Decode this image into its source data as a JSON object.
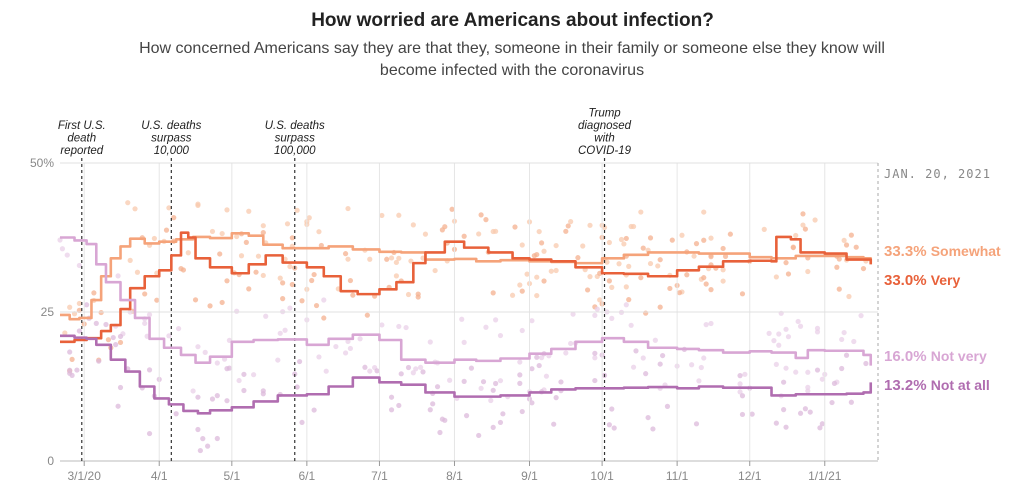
{
  "chart_data": {
    "type": "line",
    "title": "How worried are Americans about infection?",
    "subtitle": "How concerned Americans say they are that they, someone in their family or someone else they know will become infected with the coronavirus",
    "x_range": [
      "2020-02-20",
      "2021-01-23"
    ],
    "ylim": [
      0,
      50
    ],
    "y_ticks": [
      {
        "value": 0,
        "label": "0"
      },
      {
        "value": 25,
        "label": "25"
      },
      {
        "value": 50,
        "label": "50%"
      }
    ],
    "x_ticks": [
      {
        "date": "2020-03-01",
        "label": "3/1/20"
      },
      {
        "date": "2020-04-01",
        "label": "4/1"
      },
      {
        "date": "2020-05-01",
        "label": "5/1"
      },
      {
        "date": "2020-06-01",
        "label": "6/1"
      },
      {
        "date": "2020-07-01",
        "label": "7/1"
      },
      {
        "date": "2020-08-01",
        "label": "8/1"
      },
      {
        "date": "2020-09-01",
        "label": "9/1"
      },
      {
        "date": "2020-10-01",
        "label": "10/1"
      },
      {
        "date": "2020-11-01",
        "label": "11/1"
      },
      {
        "date": "2020-12-01",
        "label": "12/1"
      },
      {
        "date": "2021-01-01",
        "label": "1/1/21"
      }
    ],
    "current_date_label": "JAN. 20, 2021",
    "annotations": [
      {
        "date": "2020-02-29",
        "lines": [
          "First U.S.",
          "death",
          "reported"
        ]
      },
      {
        "date": "2020-04-06",
        "lines": [
          "U.S. deaths",
          "surpass",
          "10,000"
        ]
      },
      {
        "date": "2020-05-27",
        "lines": [
          "U.S. deaths",
          "surpass",
          "100,000"
        ]
      },
      {
        "date": "2020-10-02",
        "lines": [
          "Trump",
          "diagnosed",
          "with",
          "COVID-19"
        ]
      }
    ],
    "series": [
      {
        "name": "Somewhat",
        "end_value": "33.3%",
        "color": "#f5a37a",
        "dot_color": "#f8c9ad",
        "points": [
          [
            "2020-02-20",
            24.5
          ],
          [
            "2020-02-24",
            23.8
          ],
          [
            "2020-02-28",
            24
          ],
          [
            "2020-03-04",
            27
          ],
          [
            "2020-03-08",
            31
          ],
          [
            "2020-03-12",
            34
          ],
          [
            "2020-03-16",
            36
          ],
          [
            "2020-03-20",
            37.3
          ],
          [
            "2020-03-26",
            36.5
          ],
          [
            "2020-04-01",
            36.8
          ],
          [
            "2020-04-08",
            37.2
          ],
          [
            "2020-04-15",
            37.6
          ],
          [
            "2020-04-22",
            37.4
          ],
          [
            "2020-05-01",
            38.2
          ],
          [
            "2020-05-08",
            37.8
          ],
          [
            "2020-05-14",
            36.3
          ],
          [
            "2020-05-22",
            35.7
          ],
          [
            "2020-06-01",
            35.7
          ],
          [
            "2020-06-10",
            36
          ],
          [
            "2020-06-20",
            35.5
          ],
          [
            "2020-07-01",
            35.1
          ],
          [
            "2020-07-10",
            35
          ],
          [
            "2020-07-20",
            33.8
          ],
          [
            "2020-08-01",
            33.9
          ],
          [
            "2020-08-10",
            33.5
          ],
          [
            "2020-08-20",
            33.7
          ],
          [
            "2020-09-01",
            33.5
          ],
          [
            "2020-09-10",
            33.4
          ],
          [
            "2020-09-20",
            33.2
          ],
          [
            "2020-10-01",
            34
          ],
          [
            "2020-10-10",
            34.6
          ],
          [
            "2020-10-20",
            35
          ],
          [
            "2020-11-01",
            35
          ],
          [
            "2020-11-10",
            34.8
          ],
          [
            "2020-11-20",
            34.8
          ],
          [
            "2020-12-01",
            34.2
          ],
          [
            "2020-12-10",
            34
          ],
          [
            "2020-12-20",
            34.4
          ],
          [
            "2021-01-01",
            34.4
          ],
          [
            "2021-01-10",
            34.2
          ],
          [
            "2021-01-17",
            34
          ],
          [
            "2021-01-20",
            33.3
          ]
        ]
      },
      {
        "name": "Very",
        "end_value": "33.0%",
        "color": "#e8613a",
        "dot_color": "#f4b08f",
        "points": [
          [
            "2020-02-20",
            20
          ],
          [
            "2020-02-26",
            20.3
          ],
          [
            "2020-03-02",
            20.6
          ],
          [
            "2020-03-08",
            21.8
          ],
          [
            "2020-03-12",
            22.8
          ],
          [
            "2020-03-16",
            25.5
          ],
          [
            "2020-03-20",
            29
          ],
          [
            "2020-03-26",
            31
          ],
          [
            "2020-04-01",
            32
          ],
          [
            "2020-04-06",
            34.5
          ],
          [
            "2020-04-10",
            38.3
          ],
          [
            "2020-04-13",
            37.5
          ],
          [
            "2020-04-16",
            34
          ],
          [
            "2020-04-22",
            32.5
          ],
          [
            "2020-05-01",
            31.5
          ],
          [
            "2020-05-08",
            33
          ],
          [
            "2020-05-15",
            34.5
          ],
          [
            "2020-05-22",
            33.3
          ],
          [
            "2020-06-01",
            32.5
          ],
          [
            "2020-06-08",
            31
          ],
          [
            "2020-06-15",
            28.5
          ],
          [
            "2020-06-22",
            28
          ],
          [
            "2020-07-01",
            28.8
          ],
          [
            "2020-07-08",
            30
          ],
          [
            "2020-07-15",
            33.2
          ],
          [
            "2020-07-20",
            35
          ],
          [
            "2020-07-28",
            36.8
          ],
          [
            "2020-08-05",
            35.8
          ],
          [
            "2020-08-15",
            35
          ],
          [
            "2020-08-25",
            34
          ],
          [
            "2020-09-01",
            33.8
          ],
          [
            "2020-09-10",
            33.5
          ],
          [
            "2020-09-20",
            32.5
          ],
          [
            "2020-10-01",
            31.5
          ],
          [
            "2020-10-10",
            31.4
          ],
          [
            "2020-10-20",
            31
          ],
          [
            "2020-11-01",
            32
          ],
          [
            "2020-11-10",
            32.6
          ],
          [
            "2020-11-20",
            33.5
          ],
          [
            "2020-12-01",
            33.6
          ],
          [
            "2020-12-10",
            33.5
          ],
          [
            "2020-12-12",
            37.6
          ],
          [
            "2020-12-18",
            37.2
          ],
          [
            "2020-12-22",
            35
          ],
          [
            "2021-01-01",
            34.8
          ],
          [
            "2021-01-10",
            33.8
          ],
          [
            "2021-01-17",
            33.8
          ],
          [
            "2021-01-20",
            33
          ]
        ]
      },
      {
        "name": "Not very",
        "end_value": "16.0%",
        "color": "#d8a6d4",
        "dot_color": "#ead0e8",
        "points": [
          [
            "2020-02-20",
            37.5
          ],
          [
            "2020-02-26",
            37
          ],
          [
            "2020-03-02",
            36.4
          ],
          [
            "2020-03-06",
            33
          ],
          [
            "2020-03-10",
            30
          ],
          [
            "2020-03-16",
            27
          ],
          [
            "2020-03-22",
            24
          ],
          [
            "2020-03-28",
            20.5
          ],
          [
            "2020-04-03",
            19
          ],
          [
            "2020-04-10",
            17.8
          ],
          [
            "2020-04-16",
            16.5
          ],
          [
            "2020-04-22",
            17.5
          ],
          [
            "2020-05-01",
            20
          ],
          [
            "2020-05-10",
            20.3
          ],
          [
            "2020-05-20",
            20.4
          ],
          [
            "2020-06-01",
            19.5
          ],
          [
            "2020-06-10",
            20.5
          ],
          [
            "2020-06-20",
            21.2
          ],
          [
            "2020-07-01",
            20.3
          ],
          [
            "2020-07-10",
            17
          ],
          [
            "2020-07-20",
            16.5
          ],
          [
            "2020-08-01",
            17
          ],
          [
            "2020-08-10",
            16.8
          ],
          [
            "2020-08-20",
            17.2
          ],
          [
            "2020-09-01",
            18
          ],
          [
            "2020-09-10",
            18.8
          ],
          [
            "2020-09-20",
            20
          ],
          [
            "2020-10-01",
            20.6
          ],
          [
            "2020-10-10",
            20
          ],
          [
            "2020-10-20",
            19
          ],
          [
            "2020-11-01",
            18.8
          ],
          [
            "2020-11-10",
            18.6
          ],
          [
            "2020-11-20",
            18.2
          ],
          [
            "2020-12-01",
            18.4
          ],
          [
            "2020-12-10",
            18.2
          ],
          [
            "2020-12-20",
            17.3
          ],
          [
            "2020-12-25",
            18.6
          ],
          [
            "2021-01-01",
            18.5
          ],
          [
            "2021-01-10",
            18.5
          ],
          [
            "2021-01-17",
            17.8
          ],
          [
            "2021-01-20",
            16
          ]
        ]
      },
      {
        "name": "Not at all",
        "end_value": "13.2%",
        "color": "#b06db0",
        "dot_color": "#dcbadb",
        "points": [
          [
            "2020-02-20",
            21
          ],
          [
            "2020-02-26",
            20.7
          ],
          [
            "2020-03-02",
            20.5
          ],
          [
            "2020-03-06",
            19.5
          ],
          [
            "2020-03-12",
            17
          ],
          [
            "2020-03-18",
            15
          ],
          [
            "2020-03-24",
            12.5
          ],
          [
            "2020-03-30",
            10.5
          ],
          [
            "2020-04-05",
            9.5
          ],
          [
            "2020-04-11",
            8.4
          ],
          [
            "2020-04-17",
            8
          ],
          [
            "2020-04-22",
            8.5
          ],
          [
            "2020-05-01",
            9
          ],
          [
            "2020-05-10",
            10
          ],
          [
            "2020-05-20",
            11
          ],
          [
            "2020-06-01",
            11.2
          ],
          [
            "2020-06-10",
            12.5
          ],
          [
            "2020-06-20",
            14
          ],
          [
            "2020-07-01",
            13.2
          ],
          [
            "2020-07-10",
            12.8
          ],
          [
            "2020-07-20",
            11.5
          ],
          [
            "2020-08-01",
            10.8
          ],
          [
            "2020-08-10",
            10.8
          ],
          [
            "2020-08-20",
            11
          ],
          [
            "2020-09-01",
            11.5
          ],
          [
            "2020-09-10",
            12
          ],
          [
            "2020-09-20",
            12.2
          ],
          [
            "2020-10-01",
            12.2
          ],
          [
            "2020-10-10",
            12.3
          ],
          [
            "2020-10-20",
            12.4
          ],
          [
            "2020-11-01",
            12.2
          ],
          [
            "2020-11-10",
            12.5
          ],
          [
            "2020-11-20",
            12.3
          ],
          [
            "2020-12-01",
            12.3
          ],
          [
            "2020-12-10",
            11
          ],
          [
            "2020-12-20",
            11.2
          ],
          [
            "2021-01-01",
            11.2
          ],
          [
            "2021-01-10",
            11.3
          ],
          [
            "2021-01-17",
            11.5
          ],
          [
            "2021-01-20",
            13.2
          ]
        ]
      }
    ]
  }
}
